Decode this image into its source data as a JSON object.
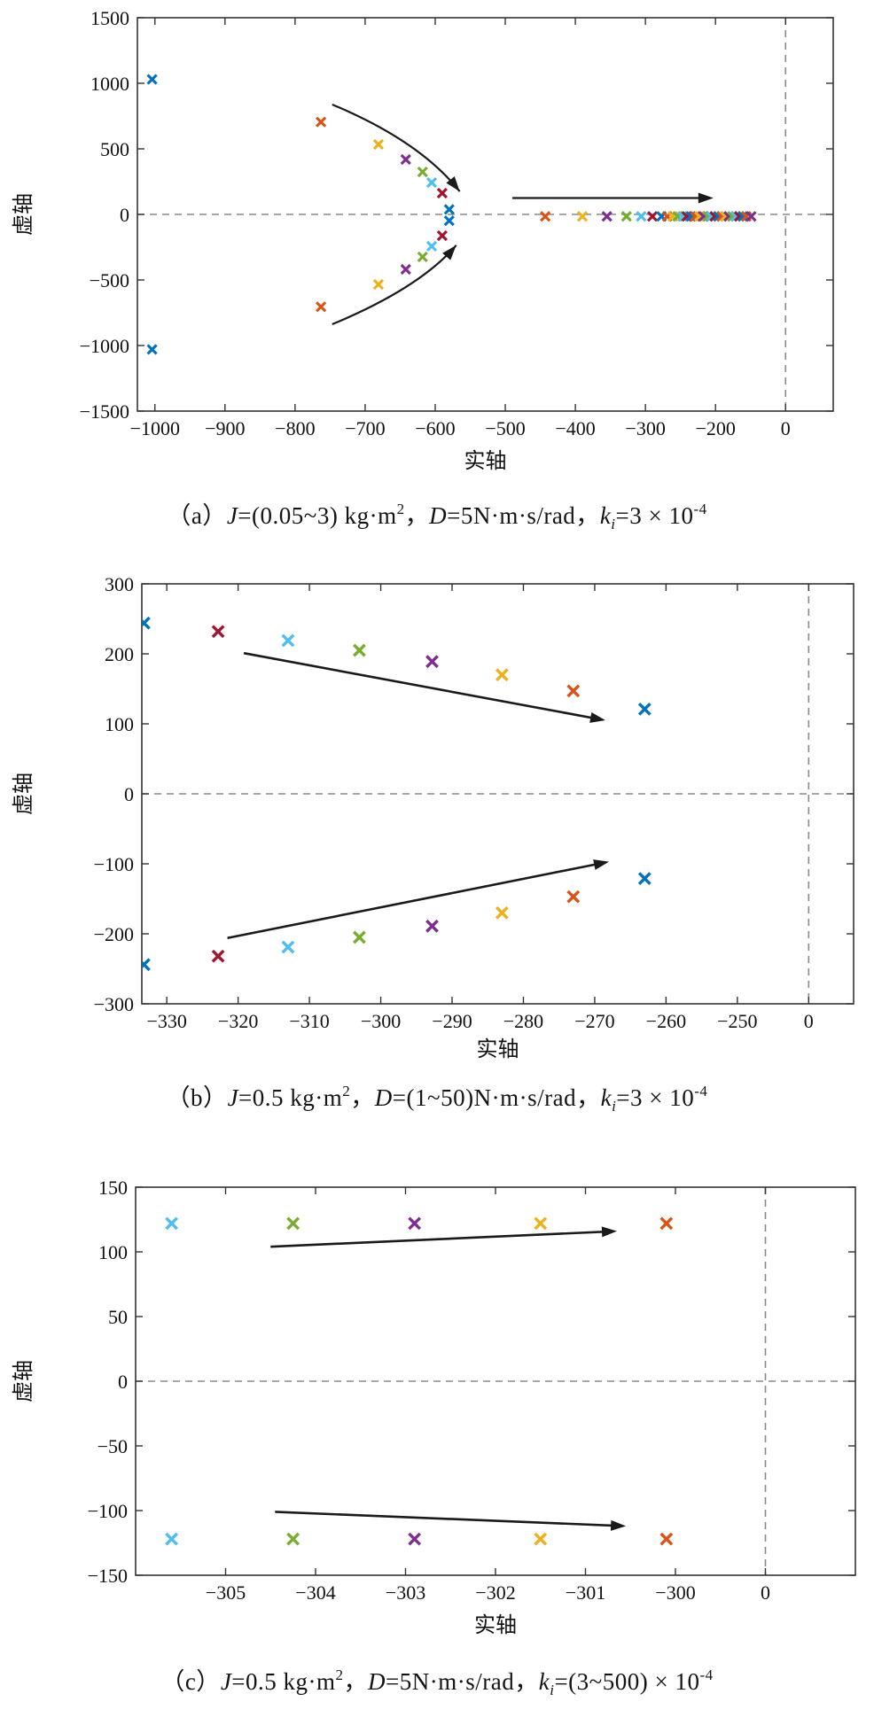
{
  "page": {
    "background": "#ffffff"
  },
  "palette": {
    "blue": "#0072BD",
    "orange": "#D95319",
    "yellow": "#EDB120",
    "purple": "#7E2F8E",
    "green": "#77AC30",
    "cyan": "#4DBEEE",
    "red": "#A2142F"
  },
  "style": {
    "axis_color": "#333333",
    "label_color": "#111111",
    "dash_color": "#8a8a8a",
    "arrow_color": "#1a1a1a"
  },
  "chart_data": [
    {
      "id": "a",
      "type": "scatter",
      "title": "",
      "xlabel": "实轴",
      "ylabel": "虚轴",
      "xlim": [
        -1025,
        -32
      ],
      "ylim": [
        -1500,
        1500
      ],
      "grid": false,
      "marker_size": 5,
      "marker_stroke": 3.1,
      "arrow_width": 2.2,
      "xticks": [
        {
          "u": -1000,
          "label": "−1000"
        },
        {
          "u": -900,
          "label": "−900"
        },
        {
          "u": -800,
          "label": "−800"
        },
        {
          "u": -700,
          "label": "−700"
        },
        {
          "u": -600,
          "label": "−600"
        },
        {
          "u": -500,
          "label": "−500"
        },
        {
          "u": -400,
          "label": "−400"
        },
        {
          "u": -300,
          "label": "−300"
        },
        {
          "u": -200,
          "label": "−200"
        },
        {
          "u": -100,
          "label": "0"
        }
      ],
      "yticks": [
        {
          "u": 1500,
          "label": "1500"
        },
        {
          "u": 1000,
          "label": "1000"
        },
        {
          "u": 500,
          "label": "500"
        },
        {
          "u": 0,
          "label": "0"
        },
        {
          "u": -500,
          "label": "−500"
        },
        {
          "u": -1000,
          "label": "−1000"
        },
        {
          "u": -1500,
          "label": "−1500"
        }
      ],
      "zero_dash_h": 0,
      "zero_dash_v": -100,
      "points": [
        [
          "blue",
          -1004,
          1030
        ],
        [
          "blue",
          -1004,
          -1030
        ],
        [
          "orange",
          -763,
          705
        ],
        [
          "orange",
          -763,
          -705
        ],
        [
          "yellow",
          -681,
          534
        ],
        [
          "yellow",
          -681,
          -534
        ],
        [
          "purple",
          -642,
          419
        ],
        [
          "purple",
          -642,
          -419
        ],
        [
          "green",
          -618,
          324
        ],
        [
          "green",
          -618,
          -324
        ],
        [
          "cyan",
          -605,
          243
        ],
        [
          "cyan",
          -605,
          -243
        ],
        [
          "red",
          -590,
          162
        ],
        [
          "red",
          -590,
          -162
        ],
        [
          "blue",
          -580,
          38
        ],
        [
          "blue",
          -580,
          -48
        ],
        [
          "orange",
          -443,
          -15
        ],
        [
          "yellow",
          -390,
          -15
        ],
        [
          "purple",
          -355,
          -15
        ],
        [
          "green",
          -327,
          -15
        ],
        [
          "cyan",
          -306,
          -15
        ],
        [
          "red",
          -290,
          -15
        ],
        [
          "blue",
          -277,
          -15
        ],
        [
          "orange",
          -269,
          -15
        ],
        [
          "yellow",
          -261,
          -15
        ],
        [
          "green",
          -254,
          -15
        ],
        [
          "cyan",
          -247,
          -15
        ],
        [
          "red",
          -241,
          -15
        ],
        [
          "blue",
          -235,
          -15
        ],
        [
          "orange",
          -229,
          -15
        ],
        [
          "yellow",
          -223,
          -15
        ],
        [
          "purple",
          -217,
          -15
        ],
        [
          "green",
          -211,
          -15
        ],
        [
          "cyan",
          -206,
          -15
        ],
        [
          "red",
          -201,
          -15
        ],
        [
          "blue",
          -196,
          -15
        ],
        [
          "orange",
          -191,
          -15
        ],
        [
          "yellow",
          -186,
          -15
        ],
        [
          "purple",
          -181,
          -15
        ],
        [
          "green",
          -176,
          -15
        ],
        [
          "cyan",
          -171,
          -15
        ],
        [
          "red",
          -166,
          -15
        ],
        [
          "blue",
          -161,
          -15
        ],
        [
          "orange",
          -156,
          -15
        ],
        [
          "purple",
          -149,
          -15
        ]
      ],
      "arrows": [
        {
          "kind": "curve",
          "p0": [
            -747,
            838
          ],
          "p1": [
            -622,
            560
          ],
          "p2": [
            -565,
            175
          ]
        },
        {
          "kind": "line",
          "p0": [
            -490,
            125
          ],
          "p2": [
            -203,
            125
          ]
        },
        {
          "kind": "curve",
          "p0": [
            -747,
            -838
          ],
          "p1": [
            -622,
            -560
          ],
          "p2": [
            -570,
            -235
          ]
        }
      ],
      "caption": [
        {
          "t": "（a）"
        },
        {
          "t": "J",
          "i": true
        },
        {
          "t": "=(0.05~3) kg·m"
        },
        {
          "t": "2",
          "sup": true
        },
        {
          "t": "，"
        },
        {
          "t": "D",
          "i": true
        },
        {
          "t": "=5N·m·s/rad，"
        },
        {
          "t": "k",
          "i": true
        },
        {
          "t": "i",
          "sub": true
        },
        {
          "t": "=3 × 10"
        },
        {
          "t": "-4",
          "sup": true
        }
      ]
    },
    {
      "id": "b",
      "type": "scatter",
      "title": "",
      "xlabel": "实轴",
      "ylabel": "虚轴",
      "xlim": [
        -333.5,
        -233.7
      ],
      "ylim": [
        -300,
        300
      ],
      "grid": false,
      "marker_size": 6.2,
      "marker_stroke": 3.4,
      "arrow_width": 2.6,
      "xticks": [
        {
          "u": -330,
          "label": "−330"
        },
        {
          "u": -320,
          "label": "−320"
        },
        {
          "u": -310,
          "label": "−310"
        },
        {
          "u": -300,
          "label": "−300"
        },
        {
          "u": -290,
          "label": "−290"
        },
        {
          "u": -280,
          "label": "−280"
        },
        {
          "u": -270,
          "label": "−270"
        },
        {
          "u": -260,
          "label": "−260"
        },
        {
          "u": -250,
          "label": "−250"
        },
        {
          "u": -240,
          "label": "0"
        }
      ],
      "yticks": [
        {
          "u": 300,
          "label": "300"
        },
        {
          "u": 200,
          "label": "200"
        },
        {
          "u": 100,
          "label": "100"
        },
        {
          "u": 0,
          "label": "0"
        },
        {
          "u": -100,
          "label": "−100"
        },
        {
          "u": -200,
          "label": "−200"
        },
        {
          "u": -300,
          "label": "−300"
        }
      ],
      "zero_dash_h": 0,
      "zero_dash_v": -240,
      "points": [
        [
          "blue",
          -333.2,
          244
        ],
        [
          "red",
          -322.8,
          232
        ],
        [
          "cyan",
          -313,
          219
        ],
        [
          "green",
          -303,
          205
        ],
        [
          "purple",
          -292.8,
          189
        ],
        [
          "yellow",
          -283,
          170
        ],
        [
          "orange",
          -273,
          147
        ],
        [
          "blue",
          -263,
          121
        ],
        [
          "blue",
          -333.2,
          -244
        ],
        [
          "red",
          -322.8,
          -232
        ],
        [
          "cyan",
          -313,
          -219
        ],
        [
          "green",
          -303,
          -205
        ],
        [
          "purple",
          -292.8,
          -189
        ],
        [
          "yellow",
          -283,
          -170
        ],
        [
          "orange",
          -273,
          -147
        ],
        [
          "blue",
          -263,
          -121
        ]
      ],
      "arrows": [
        {
          "kind": "line",
          "p0": [
            -319.2,
            201
          ],
          "p2": [
            -268.5,
            105
          ]
        },
        {
          "kind": "line",
          "p0": [
            -321.5,
            -206
          ],
          "p2": [
            -268,
            -97
          ]
        }
      ],
      "caption": [
        {
          "t": "（b）"
        },
        {
          "t": "J",
          "i": true
        },
        {
          "t": "=0.5 kg·m"
        },
        {
          "t": "2",
          "sup": true
        },
        {
          "t": "，"
        },
        {
          "t": "D",
          "i": true
        },
        {
          "t": "=(1~50)N·m·s/rad，"
        },
        {
          "t": "k",
          "i": true
        },
        {
          "t": "i",
          "sub": true
        },
        {
          "t": "=3 × 10"
        },
        {
          "t": "-4",
          "sup": true
        }
      ]
    },
    {
      "id": "c",
      "type": "scatter",
      "title": "",
      "xlabel": "实轴",
      "ylabel": "虚轴",
      "xlim": [
        -306,
        -298
      ],
      "ylim": [
        -150,
        150
      ],
      "grid": false,
      "marker_size": 6.2,
      "marker_stroke": 3.4,
      "arrow_width": 2.6,
      "xticks": [
        {
          "u": -305,
          "label": "−305"
        },
        {
          "u": -304,
          "label": "−304"
        },
        {
          "u": -303,
          "label": "−303"
        },
        {
          "u": -302,
          "label": "−302"
        },
        {
          "u": -301,
          "label": "−301"
        },
        {
          "u": -300,
          "label": "−300"
        },
        {
          "u": -299,
          "label": "0"
        }
      ],
      "yticks": [
        {
          "u": 150,
          "label": "150"
        },
        {
          "u": 100,
          "label": "100"
        },
        {
          "u": 50,
          "label": "50"
        },
        {
          "u": 0,
          "label": "0"
        },
        {
          "u": -50,
          "label": "−50"
        },
        {
          "u": -100,
          "label": "−100"
        },
        {
          "u": -150,
          "label": "−150"
        }
      ],
      "zero_dash_h": 0,
      "zero_dash_v": -299,
      "points": [
        [
          "cyan",
          -305.6,
          122
        ],
        [
          "green",
          -304.25,
          122
        ],
        [
          "purple",
          -302.9,
          122
        ],
        [
          "yellow",
          -301.5,
          122
        ],
        [
          "orange",
          -300.1,
          122
        ],
        [
          "cyan",
          -305.6,
          -122
        ],
        [
          "green",
          -304.25,
          -122
        ],
        [
          "purple",
          -302.9,
          -122
        ],
        [
          "yellow",
          -301.5,
          -122
        ],
        [
          "orange",
          -300.1,
          -122
        ]
      ],
      "arrows": [
        {
          "kind": "line",
          "p0": [
            -304.5,
            104
          ],
          "p2": [
            -300.65,
            116
          ]
        },
        {
          "kind": "line",
          "p0": [
            -304.45,
            -101
          ],
          "p2": [
            -300.55,
            -112
          ]
        }
      ],
      "caption": [
        {
          "t": "（c）"
        },
        {
          "t": "J",
          "i": true
        },
        {
          "t": "=0.5 kg·m"
        },
        {
          "t": "2",
          "sup": true
        },
        {
          "t": "，"
        },
        {
          "t": "D",
          "i": true
        },
        {
          "t": "=5N·m·s/rad，"
        },
        {
          "t": "k",
          "i": true
        },
        {
          "t": "i",
          "sub": true
        },
        {
          "t": "=(3~500) × 10"
        },
        {
          "t": "-4",
          "sup": true
        }
      ]
    }
  ]
}
